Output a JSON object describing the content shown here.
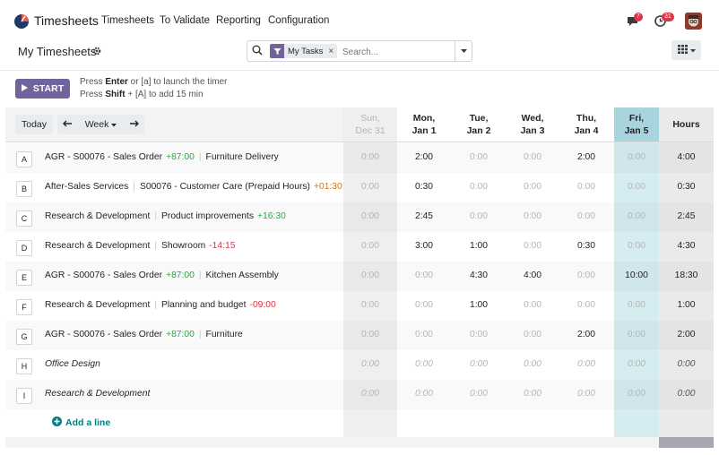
{
  "nav": {
    "app_title": "Timesheets",
    "menu": [
      "Timesheets",
      "To Validate",
      "Reporting",
      "Configuration"
    ],
    "chat_badge": "7",
    "activity_badge": "31"
  },
  "control": {
    "page_title": "My Timesheets",
    "search": {
      "facet_label": "My Tasks",
      "placeholder": "Search..."
    }
  },
  "timer": {
    "start_label": "START",
    "hint1_a": "Press ",
    "hint1_key": "Enter",
    "hint1_b": " or [a] to launch the timer",
    "hint2_a": "Press ",
    "hint2_key": "Shift",
    "hint2_b": " + [A] to add 15 min"
  },
  "grid": {
    "today_label": "Today",
    "week_label": "Week",
    "prev_icon": "arrow-left-icon",
    "next_icon": "arrow-right-icon",
    "days": [
      {
        "l1": "Sun,",
        "l2": "Dec 31"
      },
      {
        "l1": "Mon,",
        "l2": "Jan 1"
      },
      {
        "l1": "Tue,",
        "l2": "Jan 2"
      },
      {
        "l1": "Wed,",
        "l2": "Jan 3"
      },
      {
        "l1": "Thu,",
        "l2": "Jan 4"
      },
      {
        "l1": "Fri,",
        "l2": "Jan 5"
      }
    ],
    "hours_label": "Hours",
    "rows": [
      {
        "letter": "A",
        "project": "AGR - S00076 - Sales Order",
        "project_delta": "+87:00",
        "project_delta_class": "pos",
        "task": "Furniture Delivery",
        "task_delta": "",
        "task_delta_class": "",
        "italic": false,
        "cells": [
          "0:00",
          "2:00",
          "0:00",
          "0:00",
          "2:00",
          "0:00"
        ],
        "total": "4:00"
      },
      {
        "letter": "B",
        "project": "After-Sales Services",
        "project_delta": "",
        "project_delta_class": "",
        "task": "S00076 - Customer Care (Prepaid Hours)",
        "task_delta": "+01:30",
        "task_delta_class": "warn",
        "italic": false,
        "cells": [
          "0:00",
          "0:30",
          "0:00",
          "0:00",
          "0:00",
          "0:00"
        ],
        "total": "0:30"
      },
      {
        "letter": "C",
        "project": "Research & Development",
        "project_delta": "",
        "project_delta_class": "",
        "task": "Product improvements",
        "task_delta": "+16:30",
        "task_delta_class": "pos",
        "italic": false,
        "cells": [
          "0:00",
          "2:45",
          "0:00",
          "0:00",
          "0:00",
          "0:00"
        ],
        "total": "2:45"
      },
      {
        "letter": "D",
        "project": "Research & Development",
        "project_delta": "",
        "project_delta_class": "",
        "task": "Showroom",
        "task_delta": "-14:15",
        "task_delta_class": "neg",
        "italic": false,
        "cells": [
          "0:00",
          "3:00",
          "1:00",
          "0:00",
          "0:30",
          "0:00"
        ],
        "total": "4:30"
      },
      {
        "letter": "E",
        "project": "AGR - S00076 - Sales Order",
        "project_delta": "+87:00",
        "project_delta_class": "pos",
        "task": "Kitchen Assembly",
        "task_delta": "",
        "task_delta_class": "",
        "italic": false,
        "cells": [
          "0:00",
          "0:00",
          "4:30",
          "4:00",
          "0:00",
          "10:00"
        ],
        "total": "18:30"
      },
      {
        "letter": "F",
        "project": "Research & Development",
        "project_delta": "",
        "project_delta_class": "",
        "task": "Planning and budget",
        "task_delta": "-09:00",
        "task_delta_class": "neg",
        "italic": false,
        "cells": [
          "0:00",
          "0:00",
          "1:00",
          "0:00",
          "0:00",
          "0:00"
        ],
        "total": "1:00"
      },
      {
        "letter": "G",
        "project": "AGR - S00076 - Sales Order",
        "project_delta": "+87:00",
        "project_delta_class": "pos",
        "task": "Furniture",
        "task_delta": "",
        "task_delta_class": "",
        "italic": false,
        "cells": [
          "0:00",
          "0:00",
          "0:00",
          "0:00",
          "2:00",
          "0:00"
        ],
        "total": "2:00"
      },
      {
        "letter": "H",
        "project": "Office Design",
        "project_delta": "",
        "project_delta_class": "",
        "task": "",
        "task_delta": "",
        "task_delta_class": "",
        "italic": true,
        "cells": [
          "0:00",
          "0:00",
          "0:00",
          "0:00",
          "0:00",
          "0:00"
        ],
        "total": "0:00"
      },
      {
        "letter": "I",
        "project": "Research & Development",
        "project_delta": "",
        "project_delta_class": "",
        "task": "",
        "task_delta": "",
        "task_delta_class": "",
        "italic": true,
        "cells": [
          "0:00",
          "0:00",
          "0:00",
          "0:00",
          "0:00",
          "0:00"
        ],
        "total": "0:00"
      }
    ],
    "add_line_label": "Add a line"
  },
  "colors": {
    "accent": "#71639e",
    "today_header": "#a8d4dd",
    "today_col": "#d5ecf0",
    "weekend_col": "#efefef",
    "hours_col": "#eaeaea",
    "total_bar": "#a8a6b0",
    "positive": "#28a745",
    "negative": "#dc3545",
    "warning": "#c47a17",
    "link": "#017e84"
  }
}
